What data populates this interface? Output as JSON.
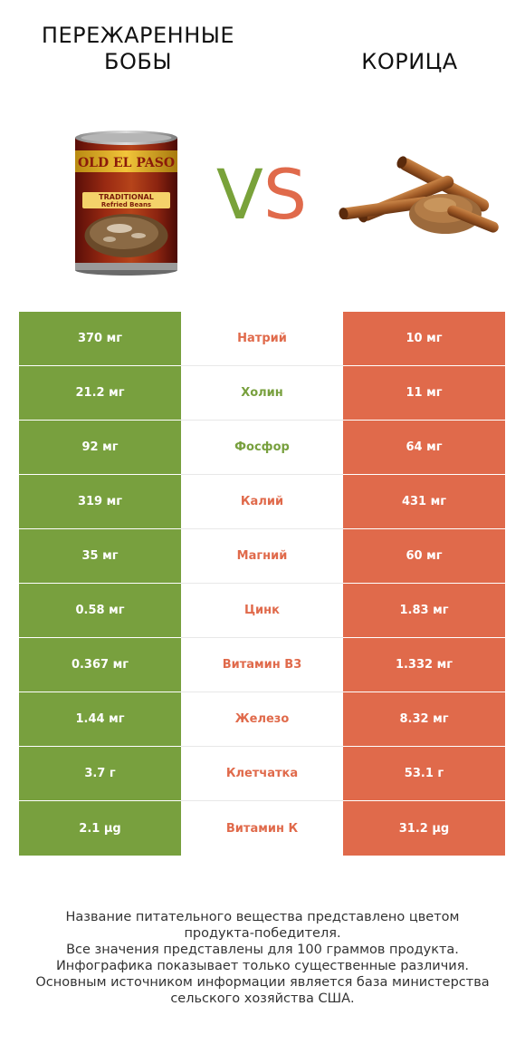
{
  "colors": {
    "left_product": "#78a03e",
    "right_product": "#e06a4b"
  },
  "left_product": {
    "name_line1": "ПЕРЕЖАРЕННЫЕ",
    "name_line2": "БОБЫ",
    "can_brand": "OLD EL PASO",
    "can_label_line1": "TRADITIONAL",
    "can_label_line2": "Refried Beans"
  },
  "right_product": {
    "name": "КОРИЦА"
  },
  "vs": {
    "v": "V",
    "s": "S"
  },
  "nutrients": [
    {
      "label": "Натрий",
      "left": "370 мг",
      "right": "10 мг",
      "winner": "right"
    },
    {
      "label": "Холин",
      "left": "21.2 мг",
      "right": "11 мг",
      "winner": "left"
    },
    {
      "label": "Фосфор",
      "left": "92 мг",
      "right": "64 мг",
      "winner": "left"
    },
    {
      "label": "Калий",
      "left": "319 мг",
      "right": "431 мг",
      "winner": "right"
    },
    {
      "label": "Магний",
      "left": "35 мг",
      "right": "60 мг",
      "winner": "right"
    },
    {
      "label": "Цинк",
      "left": "0.58 мг",
      "right": "1.83 мг",
      "winner": "right"
    },
    {
      "label": "Витамин B3",
      "left": "0.367 мг",
      "right": "1.332 мг",
      "winner": "right"
    },
    {
      "label": "Железо",
      "left": "1.44 мг",
      "right": "8.32 мг",
      "winner": "right"
    },
    {
      "label": "Клетчатка",
      "left": "3.7 г",
      "right": "53.1 г",
      "winner": "right"
    },
    {
      "label": "Витамин К",
      "left": "2.1 µg",
      "right": "31.2 µg",
      "winner": "right"
    }
  ],
  "footer": {
    "line1": "Название питательного вещества представлено цветом",
    "line2": "продукта-победителя.",
    "line3": "Все значения представлены для 100 граммов продукта.",
    "line4": "Инфографика показывает только существенные различия.",
    "line5": "Основным источником информации является база министерства",
    "line6": "сельского хозяйства США."
  }
}
